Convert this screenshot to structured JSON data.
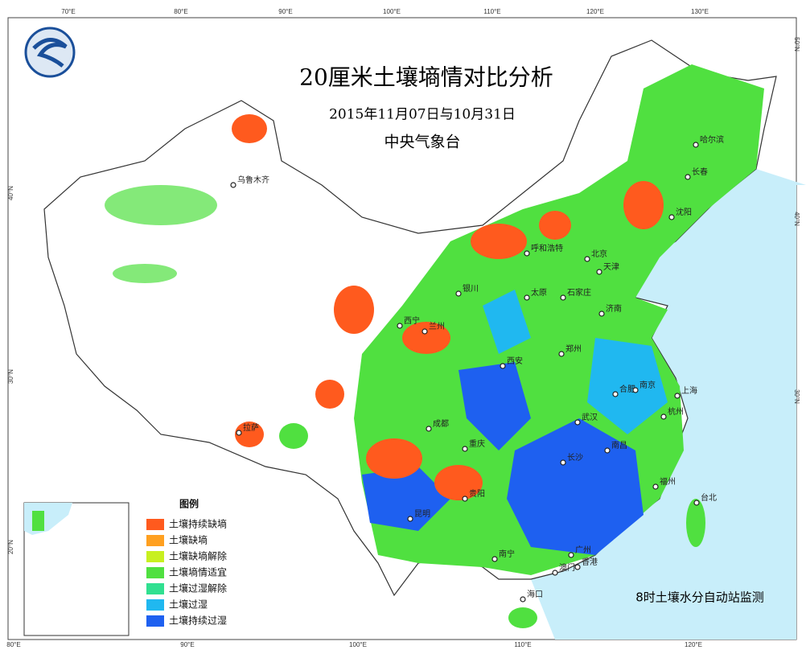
{
  "header": {
    "title": "20厘米土壤墒情对比分析",
    "subtitle": "2015年11月07日与10月31日",
    "agency": "中央气象台"
  },
  "legend": {
    "title": "图例",
    "items": [
      {
        "label": "土壤持续缺墒",
        "color": "#ff5a1e"
      },
      {
        "label": "土壤缺墒",
        "color": "#ffa020"
      },
      {
        "label": "土壤缺墒解除",
        "color": "#c8f020"
      },
      {
        "label": "土壤墒情适宜",
        "color": "#50e040"
      },
      {
        "label": "土壤过湿解除",
        "color": "#30e090"
      },
      {
        "label": "土壤过湿",
        "color": "#20b8f0"
      },
      {
        "label": "土壤持续过湿",
        "color": "#1e60f0"
      }
    ]
  },
  "note": "8时土壤水分自动站监测",
  "cities": [
    "乌鲁木齐",
    "哈尔滨",
    "长春",
    "沈阳",
    "呼和浩特",
    "北京",
    "天津",
    "银川",
    "太原",
    "石家庄",
    "济南",
    "西宁",
    "兰州",
    "郑州",
    "西安",
    "合肥",
    "南京",
    "上海",
    "拉萨",
    "成都",
    "武汉",
    "杭州",
    "重庆",
    "南昌",
    "长沙",
    "贵阳",
    "福州",
    "台北",
    "昆明",
    "南宁",
    "广州",
    "香港",
    "澳门",
    "海口"
  ],
  "graticule": {
    "top": [
      "70°E",
      "80°E",
      "90°E",
      "100°E",
      "110°E",
      "120°E",
      "130°E"
    ],
    "left": [
      "40°N",
      "30°N",
      "20°N"
    ],
    "right": [
      "50°N",
      "40°N",
      "30°N"
    ],
    "bottom": [
      "80°E",
      "90°E",
      "100°E",
      "110°E",
      "120°E"
    ]
  }
}
